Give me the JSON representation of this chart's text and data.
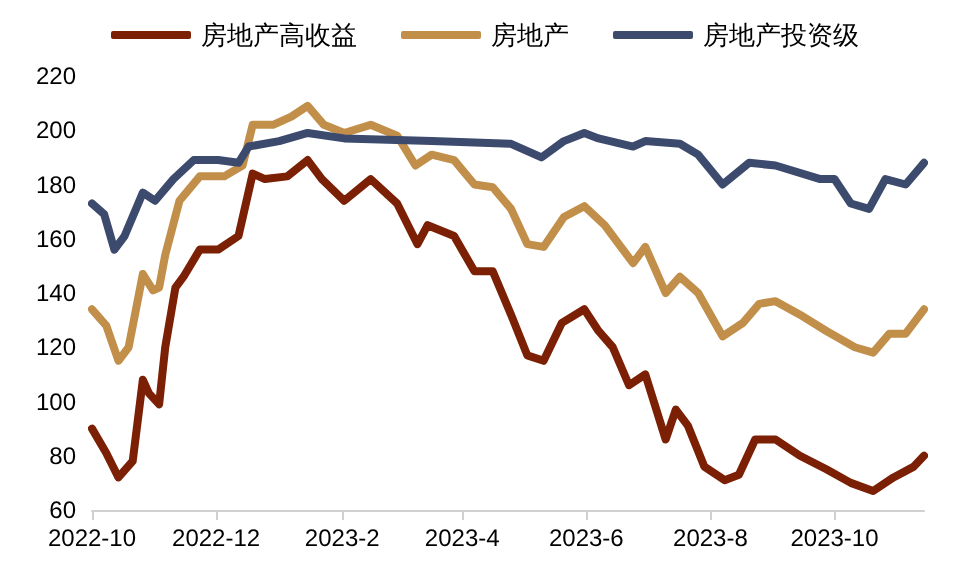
{
  "chart_data": {
    "type": "line",
    "legend": "top",
    "grid": false,
    "marker": "none",
    "line_style": "solid",
    "xlim": [
      "2022-10-01",
      "2023-11-14"
    ],
    "xticks": [
      {
        "value": "2022-10-01",
        "label": "2022-10"
      },
      {
        "value": "2022-12-01",
        "label": "2022-12"
      },
      {
        "value": "2023-02-01",
        "label": "2023-2"
      },
      {
        "value": "2023-04-01",
        "label": "2023-4"
      },
      {
        "value": "2023-06-01",
        "label": "2023-6"
      },
      {
        "value": "2023-08-01",
        "label": "2023-8"
      },
      {
        "value": "2023-10-01",
        "label": "2023-10"
      }
    ],
    "ylim": [
      60,
      220
    ],
    "yticks": [
      60,
      80,
      100,
      120,
      140,
      160,
      180,
      200,
      220
    ],
    "series": [
      {
        "name": "房地产高收益",
        "color": "#7b2005",
        "x": [
          "2022-10-01",
          "2022-10-08",
          "2022-10-14",
          "2022-10-21",
          "2022-10-26",
          "2022-10-29",
          "2022-11-03",
          "2022-11-06",
          "2022-11-11",
          "2022-11-15",
          "2022-11-23",
          "2022-12-02",
          "2022-12-12",
          "2022-12-19",
          "2022-12-25",
          "2023-01-05",
          "2023-01-15",
          "2023-01-22",
          "2023-02-02",
          "2023-02-15",
          "2023-02-28",
          "2023-03-10",
          "2023-03-15",
          "2023-03-28",
          "2023-04-07",
          "2023-04-16",
          "2023-04-25",
          "2023-05-03",
          "2023-05-11",
          "2023-05-20",
          "2023-05-31",
          "2023-06-07",
          "2023-06-14",
          "2023-06-22",
          "2023-06-30",
          "2023-07-10",
          "2023-07-15",
          "2023-07-21",
          "2023-07-29",
          "2023-08-08",
          "2023-08-15",
          "2023-08-23",
          "2023-09-02",
          "2023-09-14",
          "2023-09-27",
          "2023-10-09",
          "2023-10-20",
          "2023-10-30",
          "2023-11-09",
          "2023-11-14"
        ],
        "values": [
          90,
          81,
          72,
          78,
          108,
          103,
          99,
          120,
          142,
          146,
          156,
          156,
          161,
          184,
          182,
          183,
          189,
          182,
          174,
          182,
          173,
          158,
          165,
          161,
          148,
          148,
          132,
          117,
          115,
          129,
          134,
          126,
          120,
          106,
          110,
          86,
          97,
          91,
          76,
          71,
          73,
          86,
          86,
          80,
          75,
          70,
          67,
          72,
          76,
          80
        ]
      },
      {
        "name": "房地产",
        "color": "#c28f4a",
        "x": [
          "2022-10-01",
          "2022-10-08",
          "2022-10-14",
          "2022-10-19",
          "2022-10-26",
          "2022-10-31",
          "2022-11-03",
          "2022-11-06",
          "2022-11-13",
          "2022-11-23",
          "2022-12-05",
          "2022-12-14",
          "2022-12-19",
          "2022-12-29",
          "2023-01-07",
          "2023-01-15",
          "2023-01-23",
          "2023-02-02",
          "2023-02-15",
          "2023-02-28",
          "2023-03-09",
          "2023-03-17",
          "2023-03-28",
          "2023-04-07",
          "2023-04-16",
          "2023-04-25",
          "2023-05-03",
          "2023-05-11",
          "2023-05-21",
          "2023-05-31",
          "2023-06-10",
          "2023-06-24",
          "2023-06-30",
          "2023-07-10",
          "2023-07-17",
          "2023-07-26",
          "2023-08-07",
          "2023-08-17",
          "2023-08-25",
          "2023-09-02",
          "2023-09-14",
          "2023-09-27",
          "2023-10-11",
          "2023-10-20",
          "2023-10-28",
          "2023-11-05",
          "2023-11-14"
        ],
        "values": [
          134,
          128,
          115,
          120,
          147,
          141,
          142,
          154,
          174,
          183,
          183,
          187,
          202,
          202,
          205,
          209,
          202,
          199,
          202,
          198,
          187,
          191,
          189,
          180,
          179,
          171,
          158,
          157,
          168,
          172,
          165,
          151,
          157,
          140,
          146,
          140,
          124,
          129,
          136,
          137,
          132,
          126,
          120,
          118,
          125,
          125,
          134
        ]
      },
      {
        "name": "房地产投资级",
        "color": "#3c4a6e",
        "x": [
          "2022-10-01",
          "2022-10-07",
          "2022-10-12",
          "2022-10-17",
          "2022-10-26",
          "2022-11-01",
          "2022-11-10",
          "2022-11-20",
          "2022-12-02",
          "2022-12-12",
          "2022-12-17",
          "2023-01-01",
          "2023-01-15",
          "2023-02-02",
          "2023-03-17",
          "2023-04-25",
          "2023-05-10",
          "2023-05-21",
          "2023-05-31",
          "2023-06-07",
          "2023-06-24",
          "2023-06-30",
          "2023-07-17",
          "2023-07-26",
          "2023-08-07",
          "2023-08-20",
          "2023-09-02",
          "2023-09-24",
          "2023-10-01",
          "2023-10-09",
          "2023-10-18",
          "2023-10-26",
          "2023-11-05",
          "2023-11-14"
        ],
        "values": [
          173,
          169,
          156,
          161,
          177,
          174,
          182,
          189,
          189,
          188,
          194,
          196,
          199,
          197,
          196,
          195,
          190,
          196,
          199,
          197,
          194,
          196,
          195,
          191,
          180,
          188,
          187,
          182,
          182,
          173,
          171,
          182,
          180,
          188
        ]
      }
    ]
  }
}
